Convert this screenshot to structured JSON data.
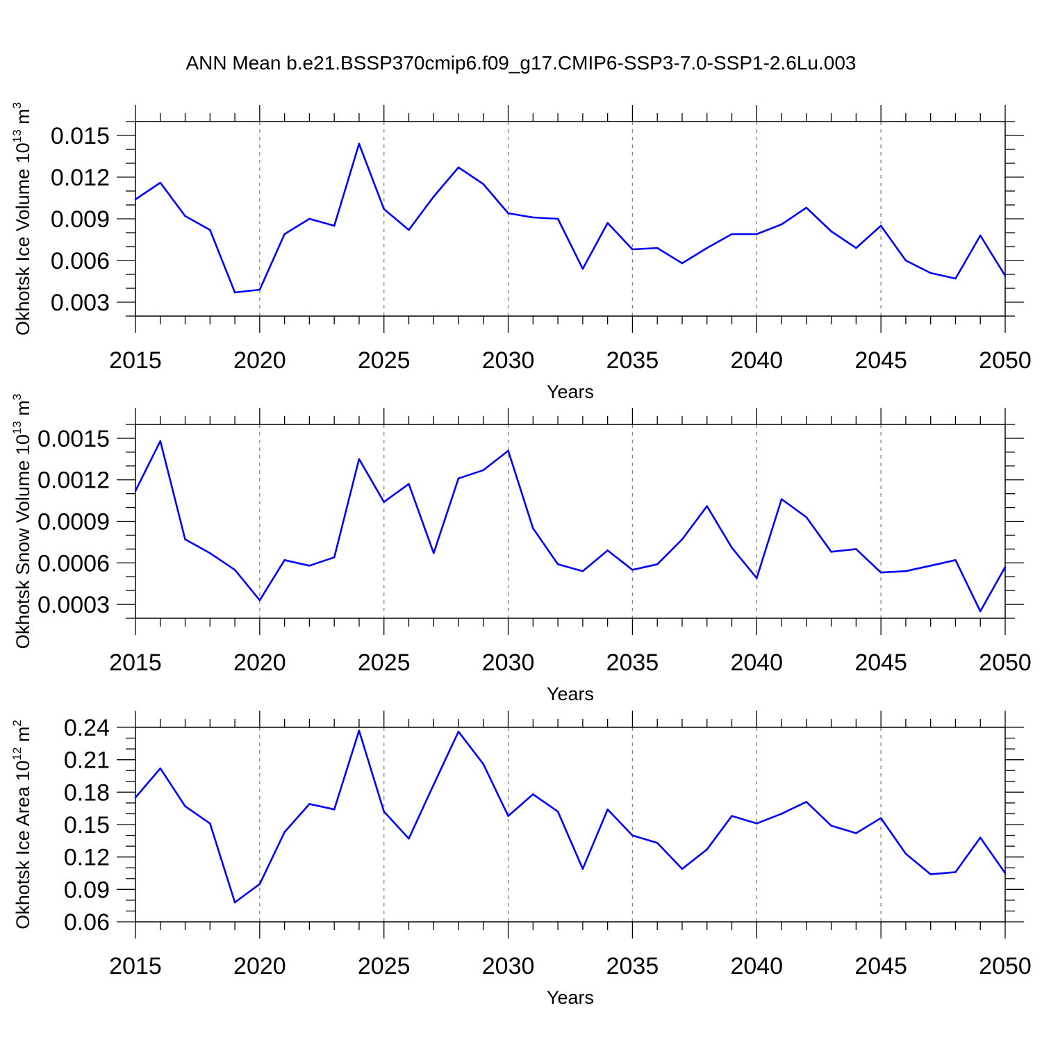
{
  "figure": {
    "title": "ANN Mean b.e21.BSSP370cmip6.f09_g17.CMIP6-SSP3-7.0-SSP1-2.6Lu.003",
    "line_color": "#0000ff",
    "grid_color": "#808080",
    "axis_color": "#000000"
  },
  "chart_data": [
    {
      "type": "line",
      "title": "ANN Mean b.e21.BSSP370cmip6.f09_g17.CMIP6-SSP3-7.0-SSP1-2.6Lu.003",
      "xlabel": "Years",
      "ylabel": "Okhotsk Ice Volume 10",
      "ylabel_sup": "13",
      "ylabel_unit": " m",
      "ylabel_unit_sup": "3",
      "xlim": [
        2015,
        2050
      ],
      "ylim": [
        0.002,
        0.016
      ],
      "yticks": [
        0.003,
        0.006,
        0.009,
        0.012,
        0.015
      ],
      "ytick_labels": [
        "0.003",
        "0.006",
        "0.009",
        "0.012",
        "0.015"
      ],
      "yminor_step": 0.001,
      "xticks": [
        2015,
        2020,
        2025,
        2030,
        2035,
        2040,
        2045,
        2050
      ],
      "xtick_labels": [
        "2015",
        "2020",
        "2025",
        "2030",
        "2035",
        "2040",
        "2045",
        "2050"
      ],
      "grid_x": [
        2020,
        2025,
        2030,
        2035,
        2040,
        2045
      ],
      "series": [
        {
          "name": "Okhotsk Ice Volume",
          "x": [
            2015,
            2016,
            2017,
            2018,
            2019,
            2020,
            2021,
            2022,
            2023,
            2024,
            2025,
            2026,
            2027,
            2028,
            2029,
            2030,
            2031,
            2032,
            2033,
            2034,
            2035,
            2036,
            2037,
            2038,
            2039,
            2040,
            2041,
            2042,
            2043,
            2044,
            2045,
            2046,
            2047,
            2048,
            2049,
            2050
          ],
          "values": [
            0.0104,
            0.0116,
            0.0092,
            0.0082,
            0.0037,
            0.0039,
            0.0079,
            0.009,
            0.0085,
            0.0144,
            0.0097,
            0.0082,
            0.0106,
            0.0127,
            0.0115,
            0.0094,
            0.0091,
            0.009,
            0.0054,
            0.0087,
            0.0068,
            0.0069,
            0.0058,
            0.0069,
            0.0079,
            0.0079,
            0.0086,
            0.0098,
            0.0081,
            0.0069,
            0.0085,
            0.006,
            0.0051,
            0.0047,
            0.0078,
            0.0049
          ]
        }
      ]
    },
    {
      "type": "line",
      "xlabel": "Years",
      "ylabel": "Okhotsk Snow Volume 10",
      "ylabel_sup": "13",
      "ylabel_unit": " m",
      "ylabel_unit_sup": "3",
      "xlim": [
        2015,
        2050
      ],
      "ylim": [
        0.0002,
        0.0016
      ],
      "yticks": [
        0.0003,
        0.0006,
        0.0009,
        0.0012,
        0.0015
      ],
      "ytick_labels": [
        "0.0003",
        "0.0006",
        "0.0009",
        "0.0012",
        "0.0015"
      ],
      "yminor_step": 0.0001,
      "xticks": [
        2015,
        2020,
        2025,
        2030,
        2035,
        2040,
        2045,
        2050
      ],
      "xtick_labels": [
        "2015",
        "2020",
        "2025",
        "2030",
        "2035",
        "2040",
        "2045",
        "2050"
      ],
      "grid_x": [
        2020,
        2025,
        2030,
        2035,
        2040,
        2045
      ],
      "series": [
        {
          "name": "Okhotsk Snow Volume",
          "x": [
            2015,
            2016,
            2017,
            2018,
            2019,
            2020,
            2021,
            2022,
            2023,
            2024,
            2025,
            2026,
            2027,
            2028,
            2029,
            2030,
            2031,
            2032,
            2033,
            2034,
            2035,
            2036,
            2037,
            2038,
            2039,
            2040,
            2041,
            2042,
            2043,
            2044,
            2045,
            2046,
            2047,
            2048,
            2049,
            2050
          ],
          "values": [
            0.00112,
            0.00148,
            0.00077,
            0.00067,
            0.00055,
            0.00033,
            0.00062,
            0.00058,
            0.00064,
            0.00135,
            0.00104,
            0.00117,
            0.00067,
            0.00121,
            0.00127,
            0.00141,
            0.00085,
            0.00059,
            0.00054,
            0.00069,
            0.00055,
            0.00059,
            0.00077,
            0.00101,
            0.00071,
            0.00049,
            0.00106,
            0.00093,
            0.00068,
            0.0007,
            0.00053,
            0.00054,
            0.00058,
            0.00062,
            0.00025,
            0.00057
          ]
        }
      ]
    },
    {
      "type": "line",
      "xlabel": "Years",
      "ylabel": "Okhotsk Ice Area 10",
      "ylabel_sup": "12",
      "ylabel_unit": " m",
      "ylabel_unit_sup": "2",
      "xlim": [
        2015,
        2050
      ],
      "ylim": [
        0.06,
        0.24
      ],
      "yticks": [
        0.06,
        0.09,
        0.12,
        0.15,
        0.18,
        0.21,
        0.24
      ],
      "ytick_labels": [
        "0.06",
        "0.09",
        "0.12",
        "0.15",
        "0.18",
        "0.21",
        "0.24"
      ],
      "yminor_step": 0.01,
      "xticks": [
        2015,
        2020,
        2025,
        2030,
        2035,
        2040,
        2045,
        2050
      ],
      "xtick_labels": [
        "2015",
        "2020",
        "2025",
        "2030",
        "2035",
        "2040",
        "2045",
        "2050"
      ],
      "grid_x": [
        2020,
        2025,
        2030,
        2035,
        2040,
        2045
      ],
      "series": [
        {
          "name": "Okhotsk Ice Area",
          "x": [
            2015,
            2016,
            2017,
            2018,
            2019,
            2020,
            2021,
            2022,
            2023,
            2024,
            2025,
            2026,
            2027,
            2028,
            2029,
            2030,
            2031,
            2032,
            2033,
            2034,
            2035,
            2036,
            2037,
            2038,
            2039,
            2040,
            2041,
            2042,
            2043,
            2044,
            2045,
            2046,
            2047,
            2048,
            2049,
            2050
          ],
          "values": [
            0.175,
            0.202,
            0.167,
            0.151,
            0.078,
            0.095,
            0.143,
            0.169,
            0.164,
            0.237,
            0.162,
            0.137,
            0.187,
            0.236,
            0.206,
            0.158,
            0.178,
            0.162,
            0.109,
            0.164,
            0.14,
            0.133,
            0.109,
            0.127,
            0.158,
            0.151,
            0.16,
            0.171,
            0.149,
            0.142,
            0.156,
            0.123,
            0.104,
            0.106,
            0.138,
            0.105
          ]
        }
      ]
    }
  ]
}
